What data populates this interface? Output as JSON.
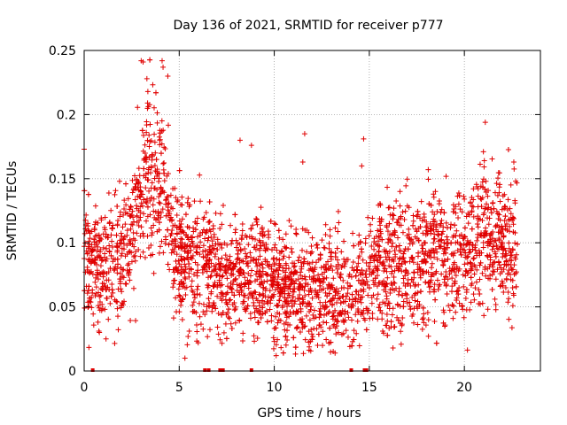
{
  "chart_data": {
    "type": "scatter",
    "title": "Day 136 of 2021, SRMTID for receiver p777",
    "xlabel": "GPS time / hours",
    "ylabel": "SRMTID / TECUs",
    "xlim": [
      0,
      24
    ],
    "ylim": [
      0,
      0.25
    ],
    "x_ticks": [
      0,
      5,
      10,
      15,
      20
    ],
    "x_tick_labels": [
      "0",
      "5",
      "10",
      "15",
      "20"
    ],
    "y_ticks": [
      0,
      0.05,
      0.1,
      0.15,
      0.2,
      0.25
    ],
    "y_tick_labels": [
      "0",
      "0.05",
      "0.1",
      "0.15",
      "0.2",
      "0.25"
    ],
    "grid": true,
    "marker": "+",
    "color": "#e00000",
    "x_range_hours": [
      0,
      22.8
    ],
    "approx_point_count": 3200,
    "profile": [
      {
        "t": 0.0,
        "median": 0.095,
        "spread": 0.03
      },
      {
        "t": 1.0,
        "median": 0.08,
        "spread": 0.028
      },
      {
        "t": 2.0,
        "median": 0.085,
        "spread": 0.028
      },
      {
        "t": 2.7,
        "median": 0.12,
        "spread": 0.035
      },
      {
        "t": 3.3,
        "median": 0.155,
        "spread": 0.04
      },
      {
        "t": 4.2,
        "median": 0.14,
        "spread": 0.035
      },
      {
        "t": 4.8,
        "median": 0.09,
        "spread": 0.03
      },
      {
        "t": 7.0,
        "median": 0.078,
        "spread": 0.028
      },
      {
        "t": 9.0,
        "median": 0.075,
        "spread": 0.028
      },
      {
        "t": 10.5,
        "median": 0.065,
        "spread": 0.027
      },
      {
        "t": 12.5,
        "median": 0.065,
        "spread": 0.028
      },
      {
        "t": 13.5,
        "median": 0.06,
        "spread": 0.027
      },
      {
        "t": 15.5,
        "median": 0.08,
        "spread": 0.028
      },
      {
        "t": 18.0,
        "median": 0.09,
        "spread": 0.03
      },
      {
        "t": 20.0,
        "median": 0.09,
        "spread": 0.03
      },
      {
        "t": 21.0,
        "median": 0.105,
        "spread": 0.032
      },
      {
        "t": 22.8,
        "median": 0.095,
        "spread": 0.03
      }
    ],
    "notable_points": [
      {
        "x": 3.0,
        "y": 0.242
      },
      {
        "x": 3.1,
        "y": 0.241
      },
      {
        "x": 4.1,
        "y": 0.242
      },
      {
        "x": 4.15,
        "y": 0.237
      },
      {
        "x": 3.3,
        "y": 0.228
      },
      {
        "x": 3.35,
        "y": 0.218
      },
      {
        "x": 4.4,
        "y": 0.23
      },
      {
        "x": 21.1,
        "y": 0.194
      },
      {
        "x": 11.6,
        "y": 0.185
      },
      {
        "x": 14.7,
        "y": 0.181
      },
      {
        "x": 8.2,
        "y": 0.18
      },
      {
        "x": 8.8,
        "y": 0.176
      },
      {
        "x": 0.0,
        "y": 0.173
      },
      {
        "x": 21.0,
        "y": 0.171
      },
      {
        "x": 22.6,
        "y": 0.163
      },
      {
        "x": 21.05,
        "y": 0.164
      },
      {
        "x": 14.6,
        "y": 0.16
      },
      {
        "x": 11.5,
        "y": 0.163
      },
      {
        "x": 18.1,
        "y": 0.157
      },
      {
        "x": 5.3,
        "y": 0.01
      },
      {
        "x": 10.1,
        "y": 0.012
      },
      {
        "x": 6.0,
        "y": 0.022
      },
      {
        "x": 13.2,
        "y": 0.014
      },
      {
        "x": 1.15,
        "y": 0.025
      },
      {
        "x": 0.8,
        "y": 0.03
      }
    ],
    "baseline_markers_x": [
      0.45,
      6.35,
      6.55,
      7.15,
      7.3,
      8.8,
      14.05,
      14.75,
      14.85
    ]
  }
}
